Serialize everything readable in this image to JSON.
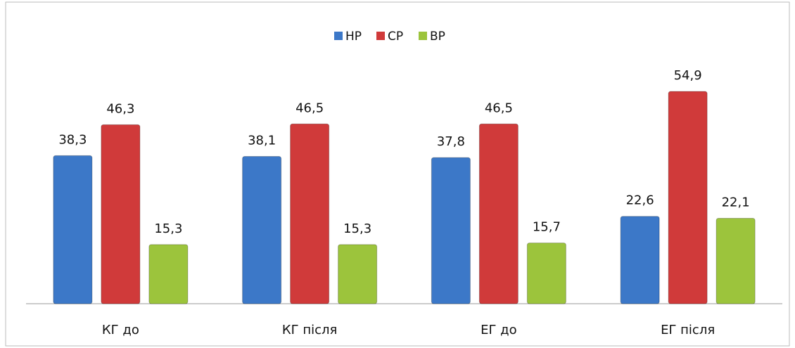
{
  "chart_data": {
    "type": "bar",
    "categories": [
      "КГ до",
      "КГ після",
      "ЕГ до",
      "ЕГ після"
    ],
    "series": [
      {
        "name": "НР",
        "color": "#3c78c8",
        "values": [
          38.3,
          38.1,
          37.8,
          22.6
        ],
        "value_labels": [
          "38,3",
          "38,1",
          "37,8",
          "22,6"
        ]
      },
      {
        "name": "СР",
        "color": "#d03a3a",
        "values": [
          46.3,
          46.5,
          46.5,
          54.9
        ],
        "value_labels": [
          "46,3",
          "46,5",
          "46,5",
          "54,9"
        ]
      },
      {
        "name": "ВР",
        "color": "#9cc43c",
        "values": [
          15.3,
          15.3,
          15.7,
          22.1
        ],
        "value_labels": [
          "15,3",
          "15,3",
          "15,7",
          "22,1"
        ]
      }
    ],
    "ylim": [
      0,
      60
    ],
    "legend": "top"
  }
}
